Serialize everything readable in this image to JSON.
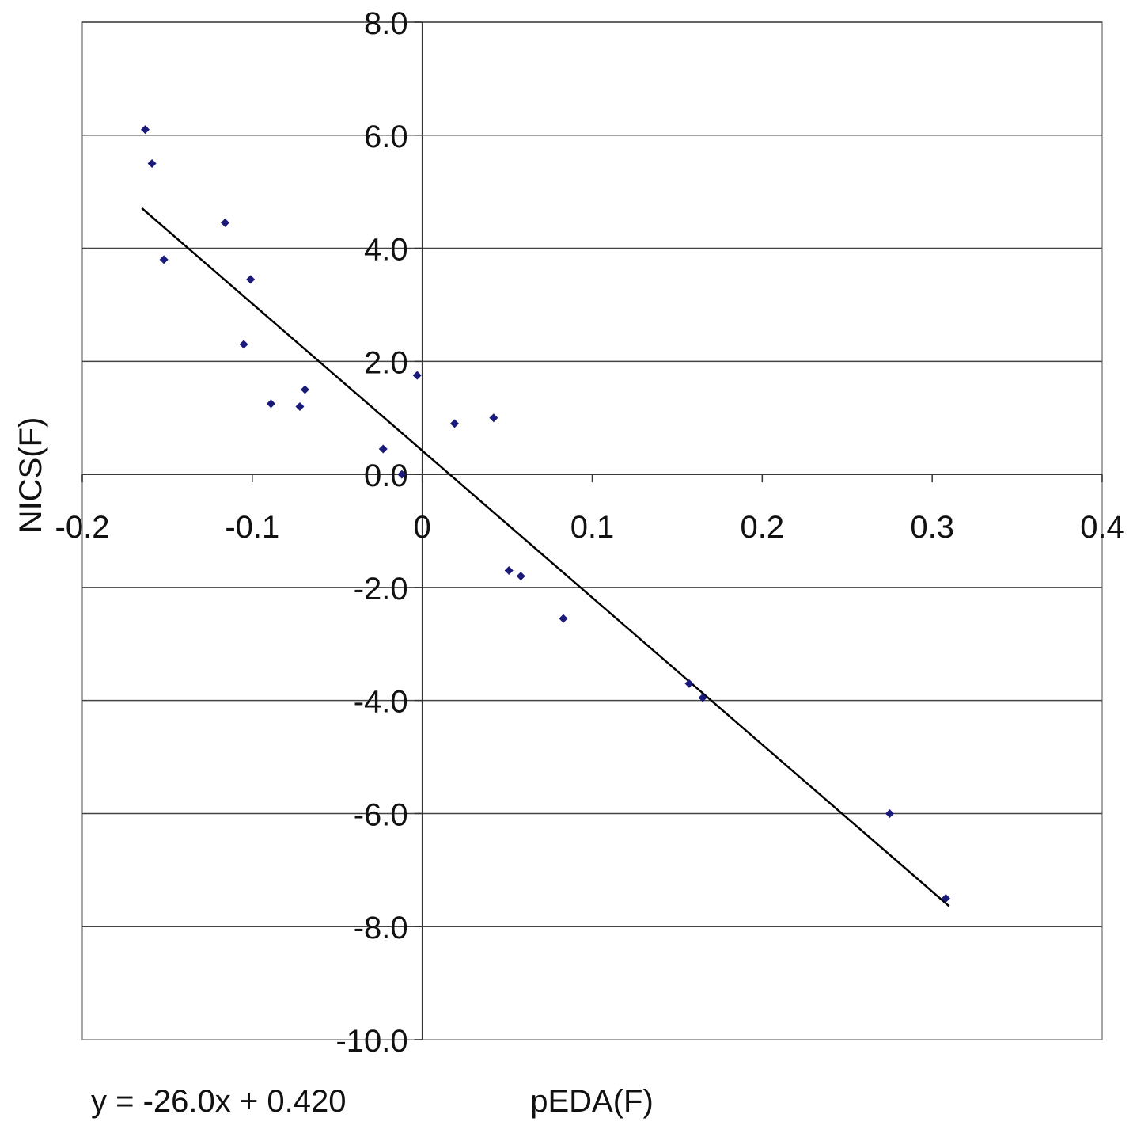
{
  "chart_data": {
    "type": "scatter",
    "title": "",
    "xlabel": "pEDA(F)",
    "ylabel": "NICS(F)",
    "xlim": [
      -0.2,
      0.4
    ],
    "ylim": [
      -10.0,
      8.0
    ],
    "x_ticks": [
      "-0.2",
      "-0.1",
      "0",
      "0.1",
      "0.2",
      "0.3",
      "0.4"
    ],
    "y_ticks": [
      "8.0",
      "6.0",
      "4.0",
      "2.0",
      "0.0",
      "-2.0",
      "-4.0",
      "-6.0",
      "-8.0",
      "-10.0"
    ],
    "x_tick_values": [
      -0.2,
      -0.1,
      0,
      0.1,
      0.2,
      0.3,
      0.4
    ],
    "y_tick_values": [
      8,
      6,
      4,
      2,
      0,
      -2,
      -4,
      -6,
      -8,
      -10
    ],
    "grid": "horizontal",
    "point_color": "#1a1a7a",
    "line_color": "#000000",
    "points": [
      {
        "x": -0.163,
        "y": 6.1
      },
      {
        "x": -0.159,
        "y": 5.5
      },
      {
        "x": -0.152,
        "y": 3.8
      },
      {
        "x": -0.116,
        "y": 4.45
      },
      {
        "x": -0.101,
        "y": 3.45
      },
      {
        "x": -0.105,
        "y": 2.3
      },
      {
        "x": -0.089,
        "y": 1.25
      },
      {
        "x": -0.072,
        "y": 1.2
      },
      {
        "x": -0.069,
        "y": 1.5
      },
      {
        "x": -0.003,
        "y": 1.75
      },
      {
        "x": -0.023,
        "y": 0.45
      },
      {
        "x": -0.012,
        "y": 0.0
      },
      {
        "x": 0.019,
        "y": 0.9
      },
      {
        "x": 0.042,
        "y": 1.0
      },
      {
        "x": 0.051,
        "y": -1.7
      },
      {
        "x": 0.058,
        "y": -1.8
      },
      {
        "x": 0.083,
        "y": -2.55
      },
      {
        "x": 0.157,
        "y": -3.7
      },
      {
        "x": 0.165,
        "y": -3.95
      },
      {
        "x": 0.275,
        "y": -6.0
      },
      {
        "x": 0.308,
        "y": -7.5
      }
    ],
    "trendline": {
      "slope": -26.0,
      "intercept": 0.42,
      "x_start": -0.165,
      "x_end": 0.31
    },
    "annotation": "y = -26.0x + 0.420"
  }
}
